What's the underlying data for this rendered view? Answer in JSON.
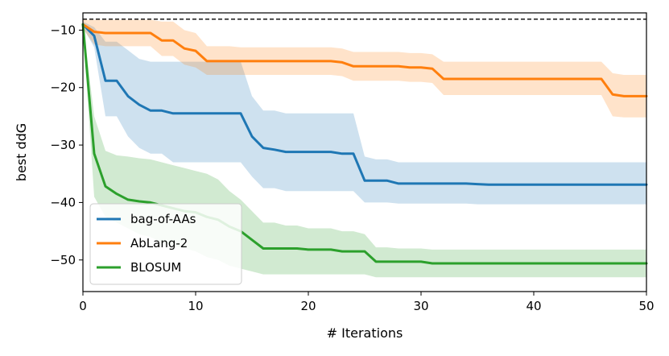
{
  "chart_data": {
    "type": "line",
    "title": "",
    "xlabel": "# Iterations",
    "ylabel": "best ddG",
    "xlim": [
      0,
      50
    ],
    "ylim": [
      -55.5,
      -7
    ],
    "xticks": [
      0,
      10,
      20,
      30,
      40,
      50
    ],
    "yticks": [
      -10,
      -20,
      -30,
      -40,
      -50
    ],
    "xtick_labels": [
      "0",
      "10",
      "20",
      "30",
      "40",
      "50"
    ],
    "ytick_labels": [
      "−10",
      "−20",
      "−30",
      "−40",
      "−50"
    ],
    "reference_line": {
      "y": -8.1,
      "style": "dashed",
      "color": "#000000"
    },
    "legend_position": "lower-left",
    "x": [
      0,
      1,
      2,
      3,
      4,
      5,
      6,
      7,
      8,
      9,
      10,
      11,
      12,
      13,
      14,
      15,
      16,
      17,
      18,
      19,
      20,
      21,
      22,
      23,
      24,
      25,
      26,
      27,
      28,
      29,
      30,
      31,
      32,
      33,
      34,
      35,
      36,
      37,
      38,
      39,
      40,
      41,
      42,
      43,
      44,
      45,
      46,
      47,
      48,
      49,
      50
    ],
    "series": [
      {
        "name": "bag-of-AAs",
        "color": "#1f77b4",
        "band_color": "#1f77b4",
        "values": [
          -9.0,
          -11.0,
          -18.8,
          -18.8,
          -21.5,
          -23.0,
          -24.0,
          -24.0,
          -24.5,
          -24.5,
          -24.5,
          -24.5,
          -24.5,
          -24.5,
          -24.5,
          -28.5,
          -30.5,
          -30.8,
          -31.2,
          -31.2,
          -31.2,
          -31.2,
          -31.2,
          -31.5,
          -31.5,
          -36.2,
          -36.2,
          -36.2,
          -36.7,
          -36.7,
          -36.7,
          -36.7,
          -36.7,
          -36.7,
          -36.7,
          -36.8,
          -36.9,
          -36.9,
          -36.9,
          -36.9,
          -36.9,
          -36.9,
          -36.9,
          -36.9,
          -36.9,
          -36.9,
          -36.9,
          -36.9,
          -36.9,
          -36.9,
          -36.9
        ],
        "upper": [
          -8.5,
          -9.5,
          -12.0,
          -12.0,
          -13.5,
          -15.0,
          -15.5,
          -15.5,
          -15.5,
          -15.5,
          -15.5,
          -15.5,
          -15.5,
          -15.5,
          -15.5,
          -21.5,
          -24.0,
          -24.0,
          -24.5,
          -24.5,
          -24.5,
          -24.5,
          -24.5,
          -24.5,
          -24.5,
          -32.0,
          -32.5,
          -32.5,
          -33.0,
          -33.0,
          -33.0,
          -33.0,
          -33.0,
          -33.0,
          -33.0,
          -33.0,
          -33.0,
          -33.0,
          -33.0,
          -33.0,
          -33.0,
          -33.0,
          -33.0,
          -33.0,
          -33.0,
          -33.0,
          -33.0,
          -33.0,
          -33.0,
          -33.0,
          -33.0
        ],
        "lower": [
          -9.5,
          -13.0,
          -25.0,
          -25.0,
          -28.5,
          -30.5,
          -31.5,
          -31.5,
          -33.0,
          -33.0,
          -33.0,
          -33.0,
          -33.0,
          -33.0,
          -33.0,
          -35.5,
          -37.5,
          -37.5,
          -38.0,
          -38.0,
          -38.0,
          -38.0,
          -38.0,
          -38.0,
          -38.0,
          -40.0,
          -40.0,
          -40.0,
          -40.2,
          -40.2,
          -40.2,
          -40.2,
          -40.2,
          -40.2,
          -40.2,
          -40.3,
          -40.3,
          -40.3,
          -40.3,
          -40.3,
          -40.3,
          -40.3,
          -40.3,
          -40.3,
          -40.3,
          -40.3,
          -40.3,
          -40.3,
          -40.3,
          -40.3,
          -40.3
        ]
      },
      {
        "name": "AbLang-2",
        "color": "#ff7f0e",
        "band_color": "#ff7f0e",
        "values": [
          -9.0,
          -10.3,
          -10.5,
          -10.5,
          -10.5,
          -10.5,
          -10.5,
          -11.8,
          -11.8,
          -13.2,
          -13.6,
          -15.4,
          -15.4,
          -15.4,
          -15.4,
          -15.4,
          -15.4,
          -15.4,
          -15.4,
          -15.4,
          -15.4,
          -15.4,
          -15.4,
          -15.6,
          -16.3,
          -16.3,
          -16.3,
          -16.3,
          -16.3,
          -16.5,
          -16.5,
          -16.7,
          -18.5,
          -18.5,
          -18.5,
          -18.5,
          -18.5,
          -18.5,
          -18.5,
          -18.5,
          -18.5,
          -18.5,
          -18.5,
          -18.5,
          -18.5,
          -18.5,
          -18.5,
          -21.2,
          -21.5,
          -21.5,
          -21.5
        ],
        "upper": [
          -8.2,
          -8.2,
          -8.2,
          -8.2,
          -8.2,
          -8.2,
          -8.2,
          -8.5,
          -8.5,
          -10.0,
          -10.5,
          -12.8,
          -12.8,
          -12.8,
          -13.0,
          -13.0,
          -13.0,
          -13.0,
          -13.0,
          -13.0,
          -13.0,
          -13.0,
          -13.0,
          -13.2,
          -13.8,
          -13.8,
          -13.8,
          -13.8,
          -13.8,
          -14.0,
          -14.0,
          -14.2,
          -15.5,
          -15.5,
          -15.5,
          -15.5,
          -15.5,
          -15.5,
          -15.5,
          -15.5,
          -15.5,
          -15.5,
          -15.5,
          -15.5,
          -15.5,
          -15.5,
          -15.5,
          -17.5,
          -17.8,
          -17.8,
          -17.8
        ],
        "lower": [
          -9.8,
          -12.5,
          -12.8,
          -12.8,
          -12.8,
          -12.8,
          -12.8,
          -14.5,
          -14.5,
          -16.0,
          -16.5,
          -17.8,
          -17.8,
          -17.8,
          -17.8,
          -17.8,
          -17.8,
          -17.8,
          -17.8,
          -17.8,
          -17.8,
          -17.8,
          -17.8,
          -18.0,
          -18.8,
          -18.8,
          -18.8,
          -18.8,
          -18.8,
          -19.0,
          -19.0,
          -19.2,
          -21.3,
          -21.3,
          -21.3,
          -21.3,
          -21.3,
          -21.3,
          -21.3,
          -21.3,
          -21.3,
          -21.3,
          -21.3,
          -21.3,
          -21.3,
          -21.3,
          -21.3,
          -25.0,
          -25.2,
          -25.2,
          -25.2
        ]
      },
      {
        "name": "BLOSUM",
        "color": "#2ca02c",
        "band_color": "#2ca02c",
        "values": [
          -9.0,
          -31.5,
          -37.2,
          -38.5,
          -39.5,
          -39.8,
          -40.0,
          -40.5,
          -41.0,
          -41.5,
          -41.7,
          -42.5,
          -43.0,
          -44.2,
          -45.0,
          -46.5,
          -48.0,
          -48.0,
          -48.0,
          -48.0,
          -48.2,
          -48.2,
          -48.2,
          -48.5,
          -48.5,
          -48.5,
          -50.3,
          -50.3,
          -50.3,
          -50.3,
          -50.3,
          -50.6,
          -50.6,
          -50.6,
          -50.6,
          -50.6,
          -50.6,
          -50.6,
          -50.6,
          -50.6,
          -50.6,
          -50.6,
          -50.6,
          -50.6,
          -50.6,
          -50.6,
          -50.6,
          -50.6,
          -50.6,
          -50.6,
          -50.6
        ],
        "upper": [
          -8.5,
          -25.0,
          -31.0,
          -31.8,
          -32.0,
          -32.3,
          -32.5,
          -33.0,
          -33.5,
          -34.0,
          -34.5,
          -35.0,
          -36.0,
          -38.0,
          -39.5,
          -41.5,
          -43.5,
          -43.5,
          -44.0,
          -44.0,
          -44.5,
          -44.5,
          -44.5,
          -45.0,
          -45.0,
          -45.5,
          -47.8,
          -47.8,
          -48.0,
          -48.0,
          -48.0,
          -48.2,
          -48.2,
          -48.2,
          -48.2,
          -48.2,
          -48.2,
          -48.2,
          -48.2,
          -48.2,
          -48.2,
          -48.2,
          -48.2,
          -48.2,
          -48.2,
          -48.2,
          -48.2,
          -48.2,
          -48.2,
          -48.2,
          -48.2
        ],
        "lower": [
          -9.5,
          -39.0,
          -42.5,
          -43.5,
          -44.5,
          -45.5,
          -46.0,
          -47.0,
          -47.5,
          -48.0,
          -48.5,
          -49.5,
          -50.0,
          -51.0,
          -51.5,
          -52.0,
          -52.5,
          -52.5,
          -52.5,
          -52.5,
          -52.5,
          -52.5,
          -52.5,
          -52.5,
          -52.5,
          -52.5,
          -53.0,
          -53.0,
          -53.0,
          -53.0,
          -53.0,
          -53.0,
          -53.0,
          -53.0,
          -53.0,
          -53.0,
          -53.0,
          -53.0,
          -53.0,
          -53.0,
          -53.0,
          -53.0,
          -53.0,
          -53.0,
          -53.0,
          -53.0,
          -53.0,
          -53.0,
          -53.0,
          -53.0,
          -53.0
        ]
      }
    ]
  }
}
